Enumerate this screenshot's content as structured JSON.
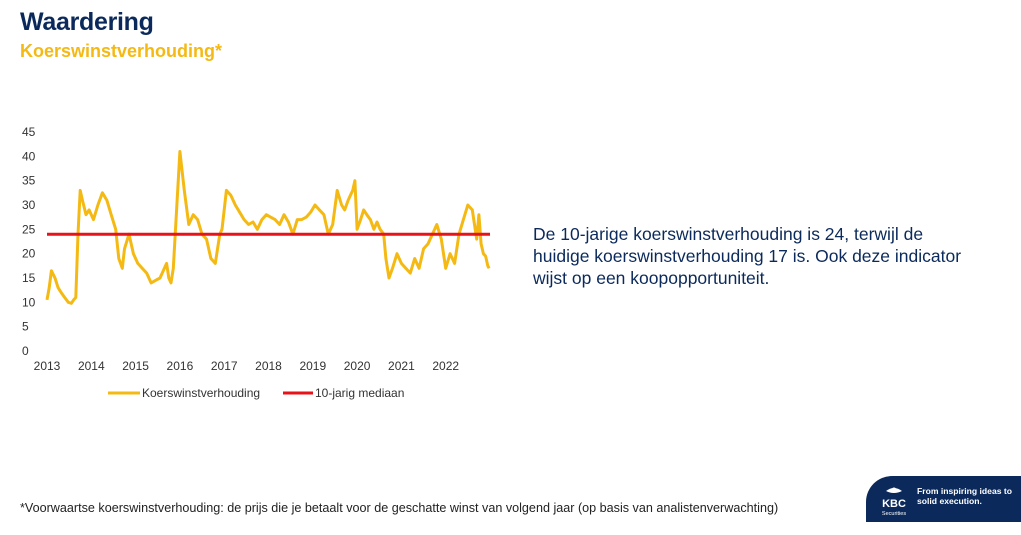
{
  "header": {
    "title": "Waardering",
    "subtitle": "Koerswinstverhouding*"
  },
  "commentary": "De 10-jarige koerswinstverhouding is 24, terwijl de huidige koerswinstverhouding 17 is. Ook deze indicator wijst op een koopopportuniteit.",
  "footnote": "*Voorwaartse koerswinstverhouding: de prijs die je betaalt voor de geschatte winst van volgend jaar (op basis van analistenverwachting)",
  "brand": {
    "name": "KBC",
    "division": "Securities",
    "tagline": "From inspiring ideas to solid execution."
  },
  "colors": {
    "title": "#0b2a5b",
    "accent": "#f5b914",
    "median": "#e8131a",
    "brand_bg": "#0b2a5b"
  },
  "chart_data": {
    "type": "line",
    "x_tick_labels": [
      "2013",
      "2014",
      "2015",
      "2016",
      "2017",
      "2018",
      "2019",
      "2020",
      "2021",
      "2022"
    ],
    "y_tick_labels": [
      "0",
      "5",
      "10",
      "15",
      "20",
      "25",
      "30",
      "35",
      "40",
      "45"
    ],
    "xlim": [
      2013.0,
      2023.0
    ],
    "ylim": [
      0,
      45
    ],
    "grid": false,
    "legend_position": "bottom",
    "series": [
      {
        "name": "Koerswinstverhouding",
        "color": "#f5b914",
        "x": [
          2013.0,
          2013.05,
          2013.1,
          2013.18,
          2013.25,
          2013.32,
          2013.4,
          2013.48,
          2013.55,
          2013.6,
          2013.65,
          2013.7,
          2013.75,
          2013.8,
          2013.88,
          2013.95,
          2014.05,
          2014.15,
          2014.25,
          2014.35,
          2014.45,
          2014.55,
          2014.62,
          2014.7,
          2014.75,
          2014.85,
          2014.95,
          2015.05,
          2015.15,
          2015.25,
          2015.35,
          2015.45,
          2015.55,
          2015.65,
          2015.7,
          2015.75,
          2015.8,
          2015.85,
          2015.9,
          2016.0,
          2016.05,
          2016.1,
          2016.2,
          2016.3,
          2016.4,
          2016.5,
          2016.6,
          2016.7,
          2016.8,
          2016.9,
          2016.95,
          2017.05,
          2017.15,
          2017.25,
          2017.35,
          2017.45,
          2017.55,
          2017.65,
          2017.75,
          2017.85,
          2017.95,
          2018.05,
          2018.15,
          2018.25,
          2018.35,
          2018.45,
          2018.55,
          2018.65,
          2018.75,
          2018.85,
          2018.95,
          2019.05,
          2019.15,
          2019.25,
          2019.35,
          2019.45,
          2019.55,
          2019.65,
          2019.72,
          2019.8,
          2019.9,
          2019.95,
          2020.0,
          2020.08,
          2020.15,
          2020.22,
          2020.3,
          2020.38,
          2020.45,
          2020.52,
          2020.6,
          2020.65,
          2020.72,
          2020.8,
          2020.9,
          2021.0,
          2021.1,
          2021.2,
          2021.3,
          2021.4,
          2021.5,
          2021.6,
          2021.7,
          2021.8,
          2021.9,
          2022.0,
          2022.1,
          2022.2,
          2022.3,
          2022.4,
          2022.5,
          2022.6,
          2022.7,
          2022.75,
          2022.8,
          2022.85,
          2022.9,
          2022.95,
          2022.98
        ],
        "values": [
          10.5,
          13,
          16.5,
          15,
          13,
          12,
          11,
          10,
          9.8,
          10.5,
          11,
          24,
          33,
          31,
          28,
          29,
          27,
          30,
          32.5,
          31,
          28,
          25,
          19,
          17,
          21,
          24,
          20,
          18,
          17,
          16,
          14,
          14.5,
          15,
          17,
          18,
          15,
          14,
          17,
          25,
          41,
          37,
          33,
          26,
          28,
          27,
          24,
          23,
          19,
          18,
          24,
          25,
          33,
          32,
          30,
          28.5,
          27,
          26,
          26.5,
          25,
          27,
          28,
          27.5,
          27,
          26,
          28,
          26.5,
          24,
          27,
          27,
          27.5,
          28.5,
          30,
          29,
          28,
          24,
          26,
          33,
          30,
          29,
          31,
          33,
          35,
          25,
          27,
          29,
          28,
          27,
          25,
          26.5,
          25,
          24,
          19,
          15,
          17,
          20,
          18,
          17,
          16,
          19,
          17,
          21,
          22,
          24,
          26,
          23,
          17,
          20,
          18,
          24,
          27,
          30,
          29,
          23,
          28,
          22,
          20,
          19.5,
          17.5,
          17
        ]
      },
      {
        "name": "10-jarig mediaan",
        "color": "#e8131a",
        "x": [
          2013.0,
          2023.0
        ],
        "values": [
          24,
          24
        ]
      }
    ]
  }
}
